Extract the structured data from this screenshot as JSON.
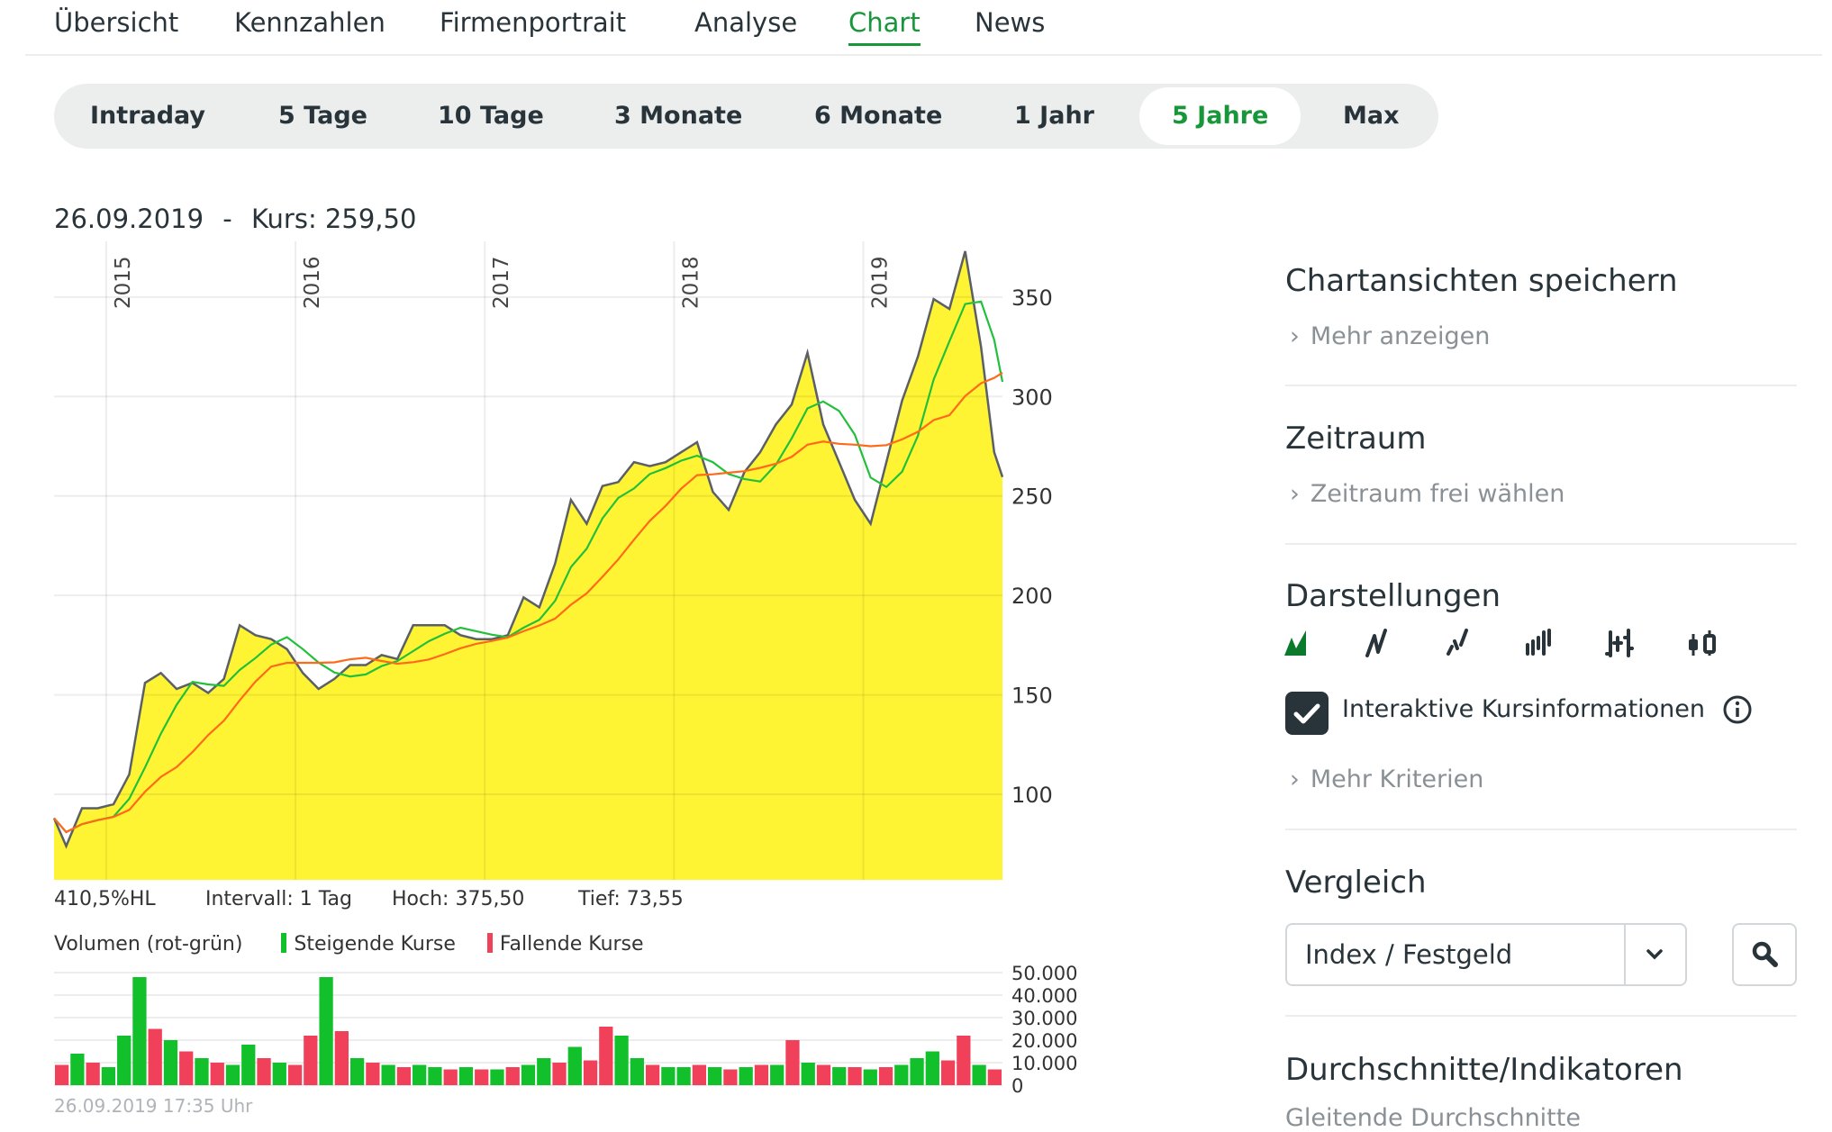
{
  "nav": {
    "tabs": [
      {
        "label": "Übersicht"
      },
      {
        "label": "Kennzahlen"
      },
      {
        "label": "Firmenportrait"
      },
      {
        "label": "Analyse"
      },
      {
        "label": "Chart",
        "active": true
      },
      {
        "label": "News"
      }
    ]
  },
  "periods": [
    {
      "label": "Intraday"
    },
    {
      "label": "5 Tage"
    },
    {
      "label": "10 Tage"
    },
    {
      "label": "3 Monate"
    },
    {
      "label": "6 Monate"
    },
    {
      "label": "1 Jahr"
    },
    {
      "label": "5 Jahre",
      "active": true
    },
    {
      "label": "Max"
    }
  ],
  "chart_header": {
    "date": "26.09.2019",
    "separator": "-",
    "price_label": "Kurs: 259,50"
  },
  "stats": {
    "range": "410,5%HL",
    "interval": "Intervall: 1 Tag",
    "high": "Hoch:  375,50",
    "low": "Tief:  73,55"
  },
  "volume_legend": {
    "title": "Volumen (rot-grün)",
    "rising": "Steigende Kurse",
    "falling": "Fallende Kurse"
  },
  "timestamp": "26.09.2019 17:35 Uhr",
  "colors": {
    "accent": "#17963a",
    "area": "#fff433",
    "price_line": "#5a6066",
    "sma_short": "#22c03a",
    "sma_long": "#ff6a1a",
    "vol_up": "#12c02c",
    "vol_down": "#f0405a"
  },
  "chart_data": [
    {
      "type": "area",
      "y_ticks": [
        100,
        150,
        200,
        250,
        300,
        350
      ],
      "y_tick_labels": [
        "100",
        "150",
        "200",
        "250",
        "300",
        "350"
      ],
      "ylim": [
        57,
        378
      ],
      "x_ticks": [
        "2015",
        "2016",
        "2017",
        "2018",
        "2019"
      ],
      "xlim": [
        "2014-09-22",
        "2019-09-26"
      ],
      "grid": true,
      "series": [
        {
          "values": [
            [
              "2014-09-22",
              88
            ],
            [
              "2014-10-15",
              74
            ],
            [
              "2014-11-15",
              93
            ],
            [
              "2014-12-15",
              93
            ],
            [
              "2015-01-15",
              95
            ],
            [
              "2015-02-15",
              110
            ],
            [
              "2015-03-15",
              156
            ],
            [
              "2015-04-15",
              161
            ],
            [
              "2015-05-15",
              153
            ],
            [
              "2015-06-15",
              156
            ],
            [
              "2015-07-15",
              151
            ],
            [
              "2015-08-15",
              158
            ],
            [
              "2015-09-15",
              185
            ],
            [
              "2015-10-15",
              180
            ],
            [
              "2015-11-15",
              178
            ],
            [
              "2015-12-15",
              173
            ],
            [
              "2016-01-15",
              161
            ],
            [
              "2016-02-15",
              153
            ],
            [
              "2016-03-15",
              158
            ],
            [
              "2016-04-15",
              165
            ],
            [
              "2016-05-15",
              165
            ],
            [
              "2016-06-15",
              170
            ],
            [
              "2016-07-15",
              168
            ],
            [
              "2016-08-15",
              185
            ],
            [
              "2016-09-15",
              185
            ],
            [
              "2016-10-15",
              185
            ],
            [
              "2016-11-15",
              180
            ],
            [
              "2016-12-15",
              178
            ],
            [
              "2017-01-15",
              178
            ],
            [
              "2017-02-15",
              180
            ],
            [
              "2017-03-15",
              199
            ],
            [
              "2017-04-15",
              194
            ],
            [
              "2017-05-15",
              216
            ],
            [
              "2017-06-15",
              248
            ],
            [
              "2017-07-15",
              236
            ],
            [
              "2017-08-15",
              255
            ],
            [
              "2017-09-15",
              257
            ],
            [
              "2017-10-15",
              267
            ],
            [
              "2017-11-15",
              265
            ],
            [
              "2017-12-15",
              267
            ],
            [
              "2018-01-15",
              272
            ],
            [
              "2018-02-15",
              277
            ],
            [
              "2018-03-15",
              252
            ],
            [
              "2018-04-15",
              243
            ],
            [
              "2018-05-15",
              262
            ],
            [
              "2018-06-15",
              272
            ],
            [
              "2018-07-15",
              286
            ],
            [
              "2018-08-15",
              296
            ],
            [
              "2018-09-15",
              322
            ],
            [
              "2018-10-15",
              286
            ],
            [
              "2018-11-15",
              267
            ],
            [
              "2018-12-15",
              248
            ],
            [
              "2019-01-15",
              236
            ],
            [
              "2019-02-15",
              267
            ],
            [
              "2019-03-15",
              298
            ],
            [
              "2019-04-15",
              320
            ],
            [
              "2019-05-15",
              349
            ],
            [
              "2019-06-15",
              344
            ],
            [
              "2019-07-15",
              373
            ],
            [
              "2019-08-15",
              325
            ],
            [
              "2019-09-10",
              272
            ],
            [
              "2019-09-26",
              259.5
            ]
          ]
        }
      ],
      "high": 375.5,
      "low": 73.55,
      "moving_averages": [
        "green",
        "orange"
      ]
    },
    {
      "type": "bar",
      "title": "Volumen (rot-grün)",
      "y_tick_labels": [
        "50.000",
        "40.000",
        "30.000",
        "20.000",
        "10.000",
        "0"
      ],
      "ylim": [
        0,
        50000
      ],
      "values": [
        [
          9000,
          "down"
        ],
        [
          14000,
          "up"
        ],
        [
          10000,
          "down"
        ],
        [
          8000,
          "up"
        ],
        [
          22000,
          "up"
        ],
        [
          48000,
          "up"
        ],
        [
          25000,
          "down"
        ],
        [
          20000,
          "up"
        ],
        [
          15000,
          "down"
        ],
        [
          12000,
          "up"
        ],
        [
          10000,
          "down"
        ],
        [
          9000,
          "up"
        ],
        [
          18000,
          "up"
        ],
        [
          12000,
          "down"
        ],
        [
          10000,
          "up"
        ],
        [
          9000,
          "down"
        ],
        [
          22000,
          "down"
        ],
        [
          48000,
          "up"
        ],
        [
          24000,
          "down"
        ],
        [
          12000,
          "up"
        ],
        [
          10000,
          "down"
        ],
        [
          9000,
          "up"
        ],
        [
          8000,
          "down"
        ],
        [
          9000,
          "up"
        ],
        [
          8000,
          "up"
        ],
        [
          7000,
          "down"
        ],
        [
          8000,
          "up"
        ],
        [
          7000,
          "down"
        ],
        [
          7000,
          "up"
        ],
        [
          8000,
          "down"
        ],
        [
          9000,
          "up"
        ],
        [
          12000,
          "up"
        ],
        [
          10000,
          "down"
        ],
        [
          17000,
          "up"
        ],
        [
          11000,
          "down"
        ],
        [
          26000,
          "down"
        ],
        [
          22000,
          "up"
        ],
        [
          12000,
          "up"
        ],
        [
          9000,
          "down"
        ],
        [
          8000,
          "up"
        ],
        [
          8000,
          "up"
        ],
        [
          9000,
          "down"
        ],
        [
          8000,
          "up"
        ],
        [
          7000,
          "down"
        ],
        [
          8000,
          "up"
        ],
        [
          9000,
          "down"
        ],
        [
          9000,
          "up"
        ],
        [
          20000,
          "down"
        ],
        [
          10000,
          "up"
        ],
        [
          9000,
          "down"
        ],
        [
          8000,
          "up"
        ],
        [
          8000,
          "down"
        ],
        [
          7000,
          "up"
        ],
        [
          8000,
          "down"
        ],
        [
          9000,
          "up"
        ],
        [
          12000,
          "up"
        ],
        [
          15000,
          "up"
        ],
        [
          11000,
          "down"
        ],
        [
          22000,
          "down"
        ],
        [
          9000,
          "up"
        ],
        [
          7000,
          "down"
        ]
      ]
    }
  ],
  "sidebar": {
    "save_views": {
      "title": "Chartansichten speichern",
      "link": "Mehr anzeigen"
    },
    "timerange": {
      "title": "Zeitraum",
      "link": "Zeitraum frei wählen"
    },
    "display": {
      "title": "Darstellungen",
      "icons": [
        "mountain-chart-icon",
        "line-chart-icon",
        "dotted-line-chart-icon",
        "bar-chart-icon",
        "ohlc-chart-icon",
        "candlestick-chart-icon"
      ],
      "checkbox_label": "Interaktive Kursinformationen",
      "checkbox_checked": true,
      "more": "Mehr Kriterien"
    },
    "compare": {
      "title": "Vergleich",
      "select_value": "Index / Festgeld"
    },
    "indicators": {
      "title": "Durchschnitte/Indikatoren",
      "link": "Gleitende Durchschnitte"
    }
  }
}
